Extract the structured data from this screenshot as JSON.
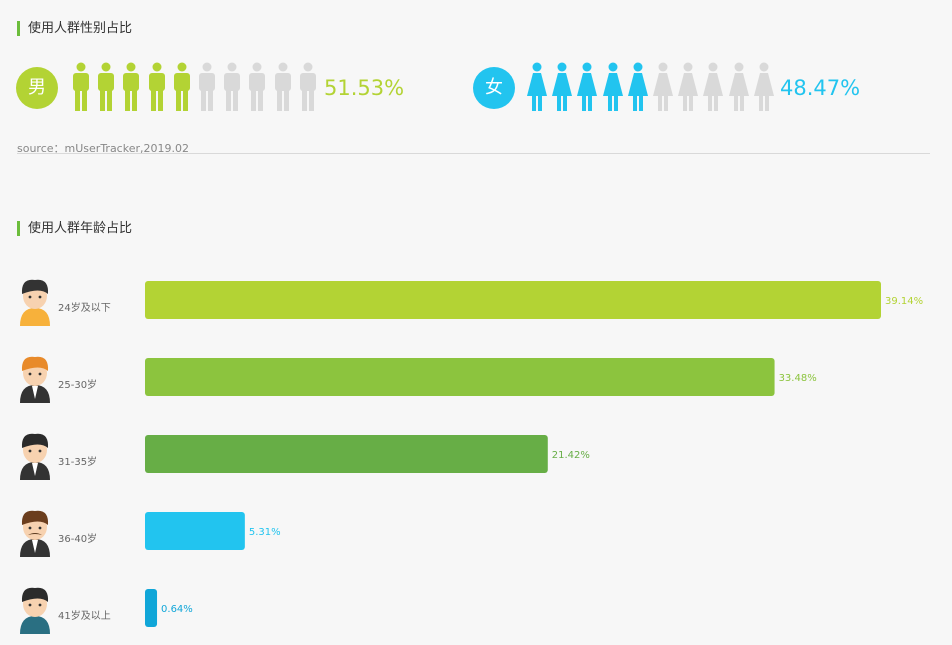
{
  "gender_section": {
    "title": "使用人群性别占比",
    "male": {
      "symbol": "男",
      "percent_label": "51.53%",
      "share": 0.5153,
      "figures_total": 10,
      "figures_filled": 5,
      "color": "#b3d334"
    },
    "female": {
      "symbol": "女",
      "percent_label": "48.47%",
      "share": 0.4847,
      "figures_total": 10,
      "figures_filled": 5,
      "color": "#22c4ef"
    },
    "inactive_color": "#d9d9d9",
    "source": "source：mUserTracker,2019.02"
  },
  "age_section": {
    "title": "使用人群年龄占比"
  },
  "chart_data": {
    "type": "bar",
    "orientation": "horizontal",
    "categories": [
      "24岁及以下",
      "25-30岁",
      "31-35岁",
      "36-40岁",
      "41岁及以上"
    ],
    "values": [
      39.14,
      33.48,
      21.42,
      5.31,
      0.64
    ],
    "value_labels": [
      "39.14%",
      "33.48%",
      "21.42%",
      "5.31%",
      "0.64%"
    ],
    "colors": [
      "#b3d334",
      "#8cc43e",
      "#67ae46",
      "#22c4ef",
      "#10a6d8"
    ],
    "avatars": [
      "young-man-icon",
      "orange-haired-man-icon",
      "suit-man-icon",
      "mustache-man-icon",
      "older-man-icon"
    ],
    "xlim": [
      0,
      39.14
    ],
    "grid": false,
    "legend": "none"
  }
}
